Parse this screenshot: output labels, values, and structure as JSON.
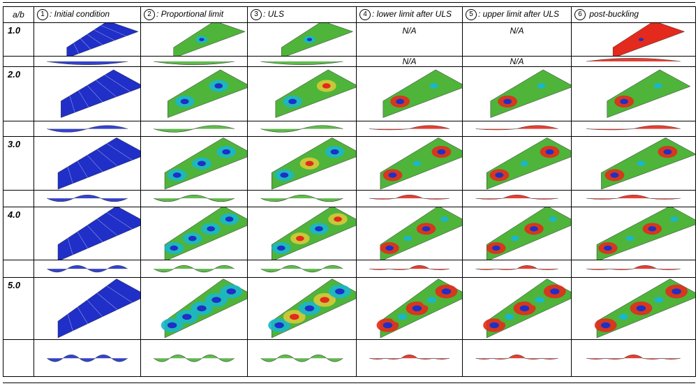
{
  "header": {
    "ratio": "a/b",
    "columns": [
      {
        "num": "1",
        "label": ": Initial condition"
      },
      {
        "num": "2",
        "label": ": Proportional limit"
      },
      {
        "num": "3",
        "label": ": ULS"
      },
      {
        "num": "4",
        "label": ": lower limit after ULS"
      },
      {
        "num": "5",
        "label": ": upper limit after ULS"
      },
      {
        "num": "6",
        "label": " post-buckling"
      }
    ]
  },
  "rows": [
    {
      "ratio": "1.0",
      "na_label": "N/A"
    },
    {
      "ratio": "2.0"
    },
    {
      "ratio": "3.0"
    },
    {
      "ratio": "4.0"
    },
    {
      "ratio": "5.0"
    }
  ],
  "colors": {
    "blue": "#1f2fc8",
    "cyan": "#19b7c9",
    "green": "#4fb43a",
    "yellow": "#d6c93a",
    "red": "#e32a1c"
  }
}
